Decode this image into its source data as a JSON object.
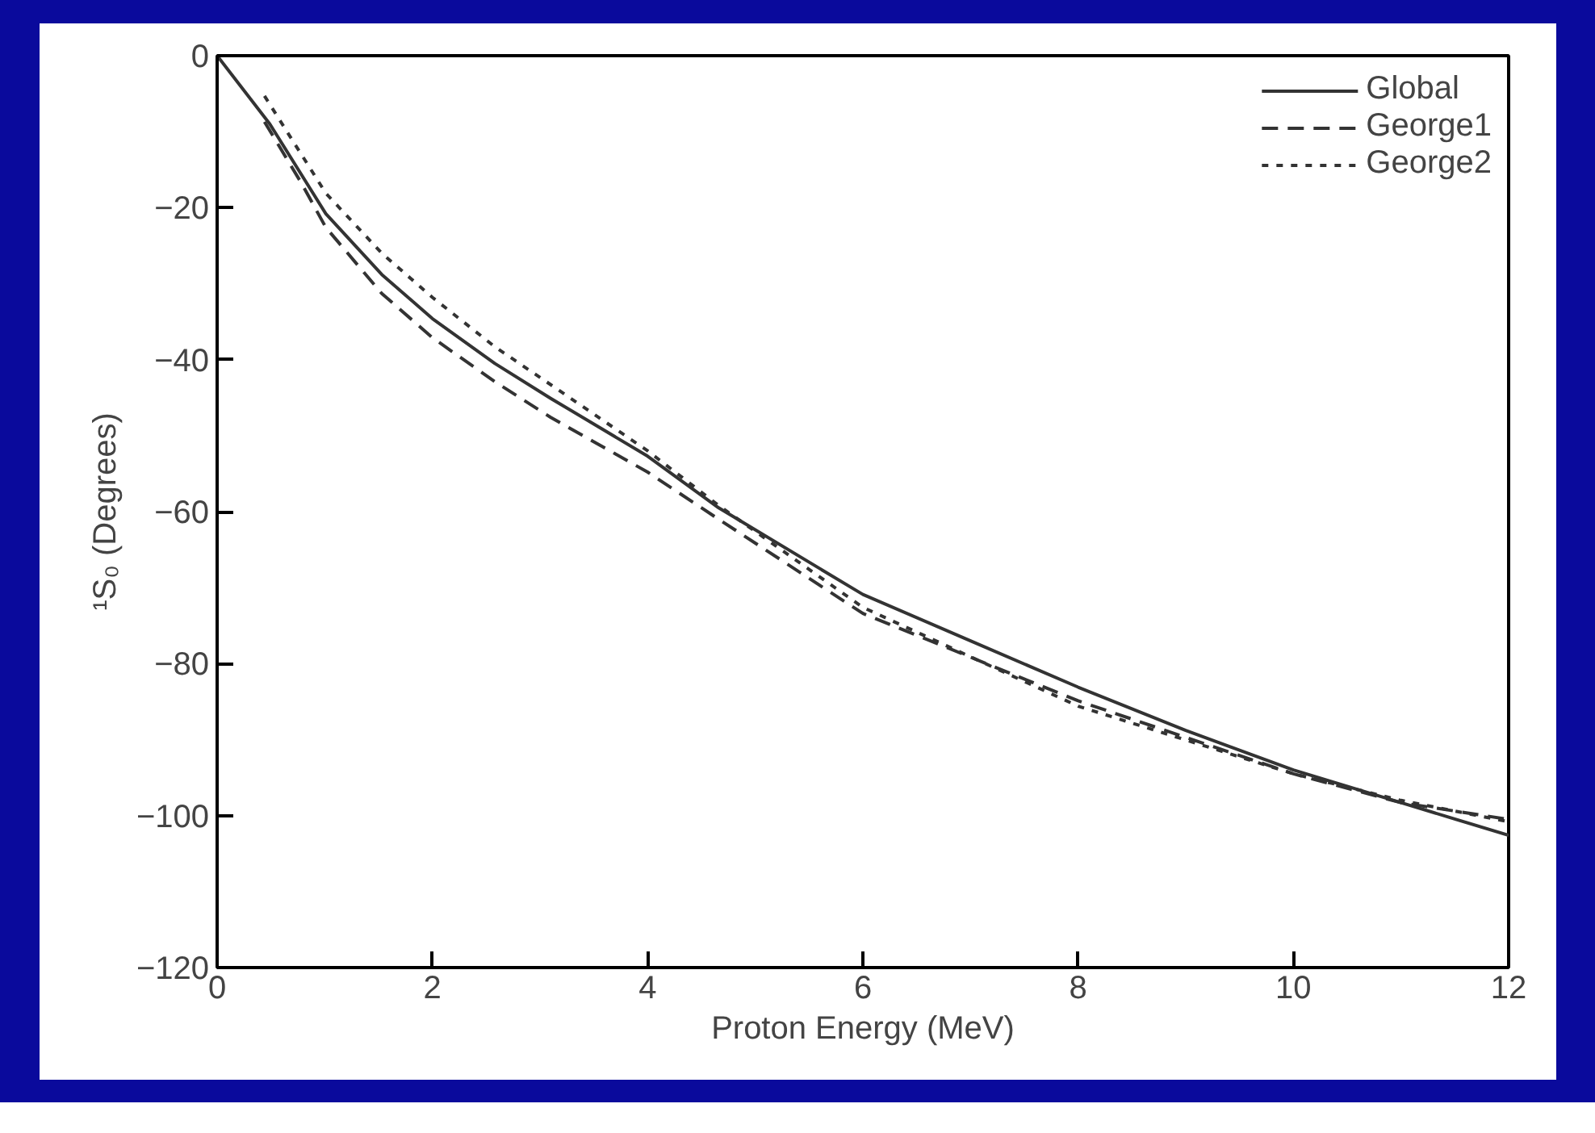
{
  "chart_data": {
    "type": "line",
    "xlabel": "Proton Energy (MeV)",
    "ylabel": "¹S₀ (Degrees)",
    "xlim": [
      0,
      12
    ],
    "ylim": [
      -120,
      0
    ],
    "xticks": [
      0,
      2,
      4,
      6,
      8,
      10,
      12
    ],
    "yticks": [
      -120,
      -100,
      -80,
      -60,
      -40,
      -20,
      0
    ],
    "grid": false,
    "legend": "top right",
    "marker": "none",
    "series": [
      {
        "name": "Global",
        "color": "#333333",
        "line_style": "solid",
        "x": [
          0,
          0.49,
          1.01,
          1.53,
          2,
          2.58,
          3.1,
          4,
          4.66,
          6,
          7,
          8,
          9,
          10,
          11,
          12
        ],
        "values": [
          0,
          -9,
          -20.8,
          -28.8,
          -34.6,
          -40.5,
          -45.1,
          -52.7,
          -59.5,
          -70.9,
          -77,
          -83.1,
          -88.8,
          -94,
          -98.3,
          -102.6
        ]
      },
      {
        "name": "George1",
        "color": "#333333",
        "line_style": "dashed",
        "x": [
          0.44,
          0.78,
          1.01,
          1.53,
          2,
          2.58,
          3.1,
          4,
          4.66,
          6,
          8,
          10,
          11,
          12
        ],
        "values": [
          -8.7,
          -16.7,
          -22.6,
          -31.3,
          -37.1,
          -42.9,
          -47.6,
          -54.8,
          -61,
          -73.4,
          -84.9,
          -94.5,
          -98.3,
          -100.5
        ]
      },
      {
        "name": "George2",
        "color": "#333333",
        "line_style": "dotted",
        "x": [
          0.44,
          1.01,
          1.53,
          2,
          2.58,
          3.1,
          4,
          4.66,
          6,
          8,
          10,
          11,
          12
        ],
        "values": [
          -5.3,
          -18.1,
          -26,
          -31.8,
          -38.3,
          -43.3,
          -52,
          -59.2,
          -72.6,
          -85.6,
          -94.5,
          -98,
          -100.8
        ]
      }
    ]
  }
}
